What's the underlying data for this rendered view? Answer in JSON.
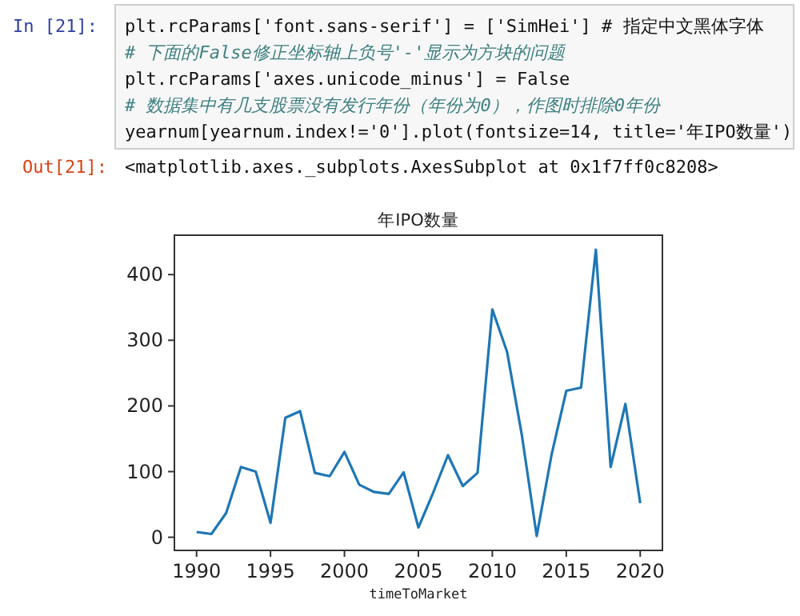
{
  "chart_data": {
    "type": "line",
    "title": "年IPO数量",
    "xlabel": "timeToMarket",
    "x": [
      1990,
      1991,
      1992,
      1993,
      1994,
      1995,
      1996,
      1997,
      1998,
      1999,
      2000,
      2001,
      2002,
      2003,
      2004,
      2005,
      2006,
      2007,
      2008,
      2009,
      2010,
      2011,
      2012,
      2013,
      2014,
      2015,
      2016,
      2017,
      2018,
      2019,
      2020
    ],
    "series": [
      {
        "color": "#1f77b4",
        "values": [
          8,
          5,
          37,
          107,
          100,
          22,
          182,
          192,
          98,
          93,
          130,
          80,
          69,
          66,
          99,
          15,
          68,
          125,
          78,
          98,
          347,
          282,
          155,
          2,
          125,
          223,
          228,
          438,
          107,
          203,
          52
        ]
      }
    ],
    "xlim": [
      1988.5,
      2021.5
    ],
    "ylim": [
      -20,
      460
    ],
    "xticks": [
      1990,
      1995,
      2000,
      2005,
      2010,
      2015,
      2020
    ],
    "yticks": [
      0,
      100,
      200,
      300,
      400
    ],
    "grid": false,
    "annotations": [
      "In [21]:",
      "plt.rcParams['font.sans-serif'] = ['SimHei'] # 指定中文黑体字体",
      "# 下面的False修正坐标轴上负号'-'显示为方块的问题",
      "plt.rcParams['axes.unicode_minus'] = False",
      "# 数据集中有几支股票没有发行年份（年份为0），作图时排除0年份",
      "yearnum[yearnum.index!='0'].plot(fontsize=14, title='年IPO数量')",
      "Out[21]:",
      "<matplotlib.axes._subplots.AxesSubplot at 0x1f7ff0c8208>"
    ]
  }
}
